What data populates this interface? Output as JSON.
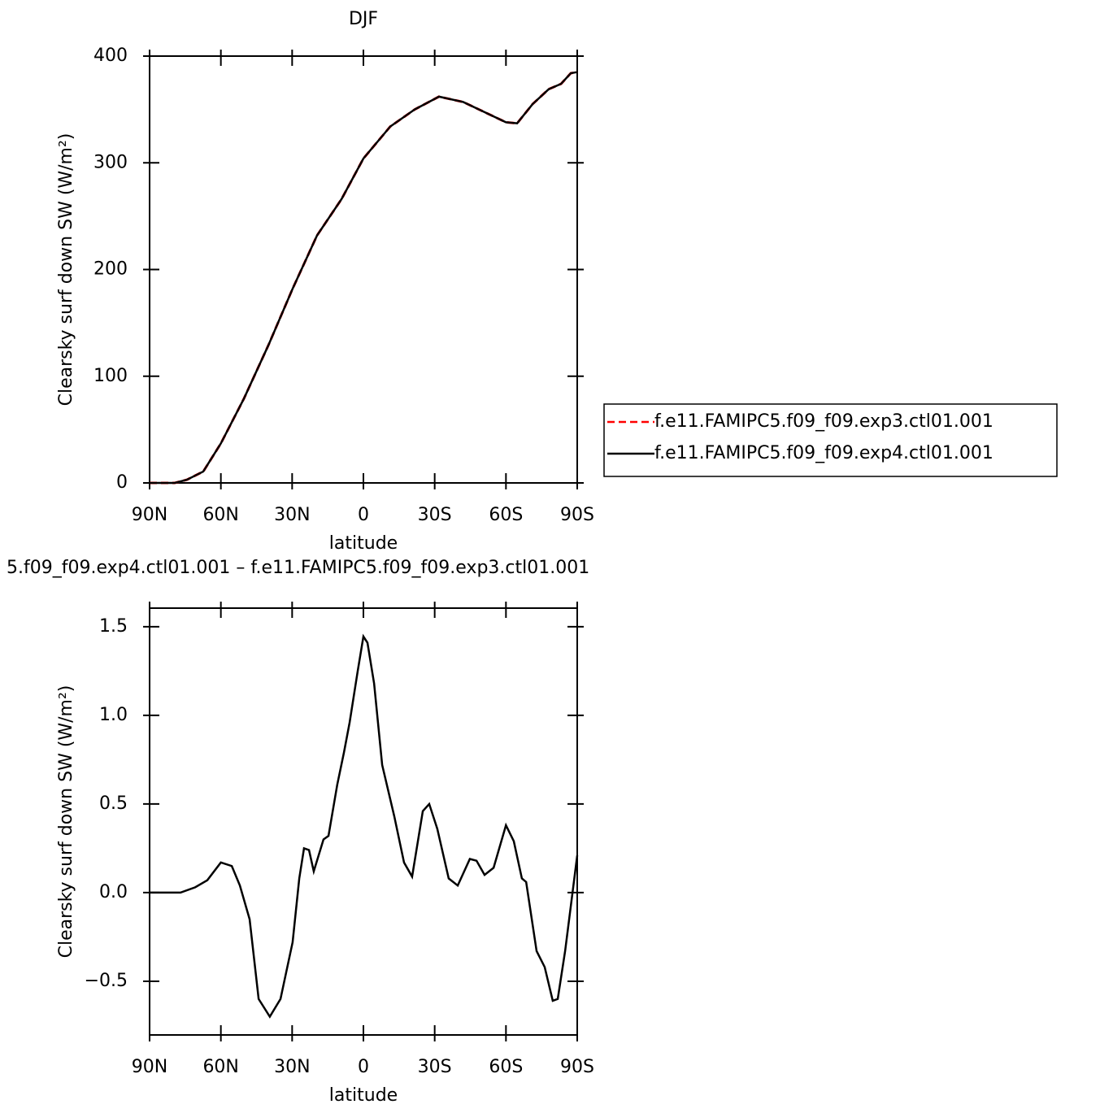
{
  "chart_data": [
    {
      "type": "line",
      "title": "DJF",
      "xlabel": "latitude",
      "ylabel": "Clearsky surf down SW (W/m²)",
      "xlim": [
        90,
        -90
      ],
      "xticks": [
        {
          "value": 90,
          "label": "90N"
        },
        {
          "value": 60,
          "label": "60N"
        },
        {
          "value": 30,
          "label": "30N"
        },
        0,
        {
          "value": -30,
          "label": "30S"
        },
        {
          "value": -60,
          "label": "60S"
        },
        {
          "value": -90,
          "label": "90S"
        }
      ],
      "ylim": [
        0,
        400
      ],
      "yticks": [
        0,
        100,
        200,
        300,
        400
      ],
      "legend": "right",
      "x": [
        90,
        79.4,
        74.3,
        67.4,
        60,
        50.3,
        40,
        29.8,
        19.5,
        9.2,
        0,
        -11.3,
        -21.6,
        -31.8,
        -42,
        -52.4,
        -60,
        -64.7,
        -71.2,
        -78,
        -83.2,
        -87.3,
        -90
      ],
      "series": [
        {
          "name": "f.e11.FAMIPC5.f09_f09.exp3.ctl01.001",
          "color": "#ff0000",
          "dash": true,
          "values": [
            0,
            0,
            3,
            10.7,
            37,
            79,
            129,
            182,
            232,
            266,
            304,
            334,
            350,
            362,
            357,
            346,
            338,
            337,
            355,
            369,
            374,
            384,
            385
          ]
        },
        {
          "name": "f.e11.FAMIPC5.f09_f09.exp4.ctl01.001",
          "color": "#000000",
          "dash": false,
          "values": [
            0,
            0,
            3,
            10.7,
            37,
            79,
            129,
            182,
            232,
            266,
            304,
            334,
            350,
            362,
            357,
            346,
            338,
            337,
            355,
            369,
            374,
            384,
            385
          ]
        }
      ]
    },
    {
      "type": "line",
      "title": "5.f09_f09.exp4.ctl01.001 – f.e11.FAMIPC5.f09_f09.exp3.ctl01.001",
      "xlabel": "latitude",
      "ylabel": "Clearsky surf down SW (W/m²)",
      "xlim": [
        90,
        -90
      ],
      "xticks": [
        {
          "value": 90,
          "label": "90N"
        },
        {
          "value": 60,
          "label": "60N"
        },
        {
          "value": 30,
          "label": "30N"
        },
        0,
        {
          "value": -30,
          "label": "30S"
        },
        {
          "value": -60,
          "label": "60S"
        },
        {
          "value": -90,
          "label": "90S"
        }
      ],
      "ylim": [
        -0.803,
        1.605
      ],
      "yticks": [
        {
          "value": -0.5,
          "label": "−0.5"
        },
        {
          "value": 0,
          "label": "0.0"
        },
        0.5,
        {
          "value": 1,
          "label": "1.0"
        },
        1.5
      ],
      "x": [
        90,
        77,
        70.8,
        65.7,
        60,
        55.4,
        52,
        47.9,
        44.1,
        39.4,
        34.9,
        29.8,
        27,
        25,
        22.9,
        20.9,
        16.8,
        14.7,
        11,
        8.2,
        5.8,
        2.4,
        0,
        -1.7,
        -4.5,
        -7.9,
        -13,
        -17.1,
        -20.5,
        -25,
        -27.7,
        -31.1,
        -35.9,
        -39.7,
        -44.8,
        -47.6,
        -51,
        -54.8,
        -60,
        -63.3,
        -66.7,
        -68.5,
        -72.9,
        -76.3,
        -79.7,
        -81.8,
        -84.9,
        -90
      ],
      "series": [
        {
          "color": "#000000",
          "values": [
            0,
            0,
            0.03,
            0.07,
            0.17,
            0.15,
            0.04,
            -0.15,
            -0.6,
            -0.7,
            -0.6,
            -0.28,
            0.08,
            0.25,
            0.24,
            0.12,
            0.3,
            0.32,
            0.61,
            0.79,
            0.96,
            1.25,
            1.445,
            1.41,
            1.18,
            0.72,
            0.43,
            0.17,
            0.09,
            0.46,
            0.5,
            0.36,
            0.08,
            0.04,
            0.19,
            0.18,
            0.1,
            0.14,
            0.38,
            0.29,
            0.08,
            0.06,
            -0.33,
            -0.42,
            -0.61,
            -0.6,
            -0.33,
            0.21
          ]
        }
      ]
    }
  ]
}
